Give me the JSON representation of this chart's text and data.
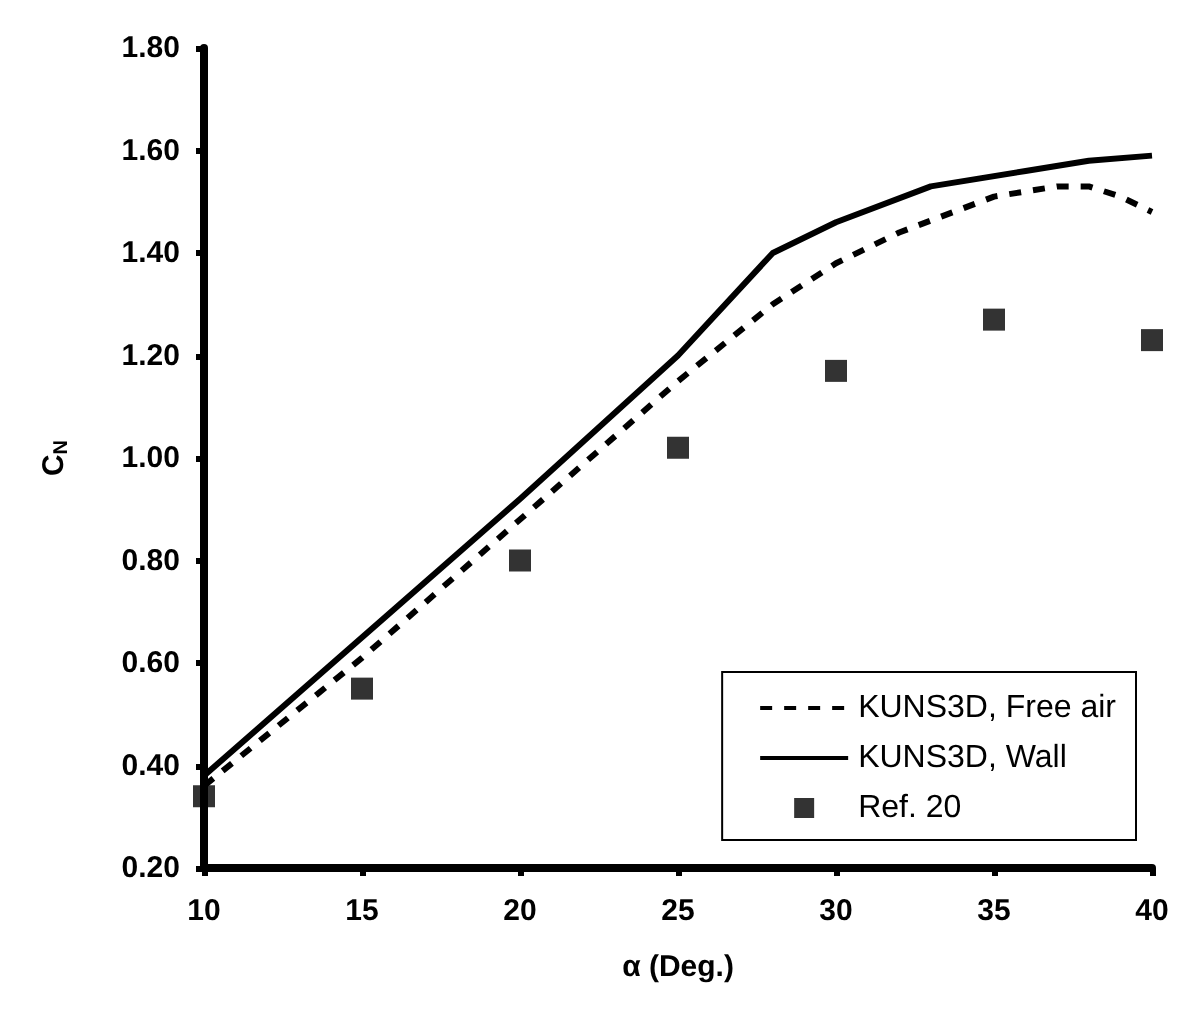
{
  "chart_data": {
    "type": "line",
    "xlabel": "α (Deg.)",
    "ylabel": "C$_{N}$",
    "xlim": [
      10,
      40
    ],
    "xticks": [
      10,
      15,
      20,
      25,
      30,
      35,
      40
    ],
    "ylim": [
      0.2,
      1.8
    ],
    "yticks": [
      {
        "value": 0.2,
        "label": "0.20"
      },
      {
        "value": 0.4,
        "label": "0.40"
      },
      {
        "value": 0.6,
        "label": "0.60"
      },
      {
        "value": 0.8,
        "label": "0.80"
      },
      {
        "value": 1.0,
        "label": "1.00"
      },
      {
        "value": 1.2,
        "label": "1.20"
      },
      {
        "value": 1.4,
        "label": "1.40"
      },
      {
        "value": 1.6,
        "label": "1.60"
      },
      {
        "value": 1.8,
        "label": "1.80"
      }
    ],
    "grid": false,
    "legend": "bottom right",
    "series": [
      {
        "name": "KUNS3D, Free air",
        "color": "#000000",
        "line_style": "dashed",
        "marker": "none",
        "x": [
          10,
          15,
          20,
          25,
          28,
          30,
          32,
          35,
          37,
          38,
          39,
          40
        ],
        "values": [
          0.36,
          0.61,
          0.88,
          1.15,
          1.3,
          1.38,
          1.44,
          1.51,
          1.53,
          1.53,
          1.51,
          1.48
        ]
      },
      {
        "name": "KUNS3D, Wall",
        "color": "#000000",
        "line_style": "solid",
        "marker": "none",
        "x": [
          10,
          20,
          25,
          28,
          30,
          33,
          36,
          38,
          40
        ],
        "values": [
          0.38,
          0.92,
          1.2,
          1.4,
          1.46,
          1.53,
          1.56,
          1.58,
          1.59
        ]
      },
      {
        "name": "Ref. 20",
        "type": "scatter",
        "color": "#000000",
        "marker": "square",
        "x": [
          10,
          15,
          20,
          25,
          30,
          35,
          40
        ],
        "values": [
          0.34,
          0.55,
          0.8,
          1.02,
          1.17,
          1.27,
          1.23
        ]
      }
    ]
  }
}
